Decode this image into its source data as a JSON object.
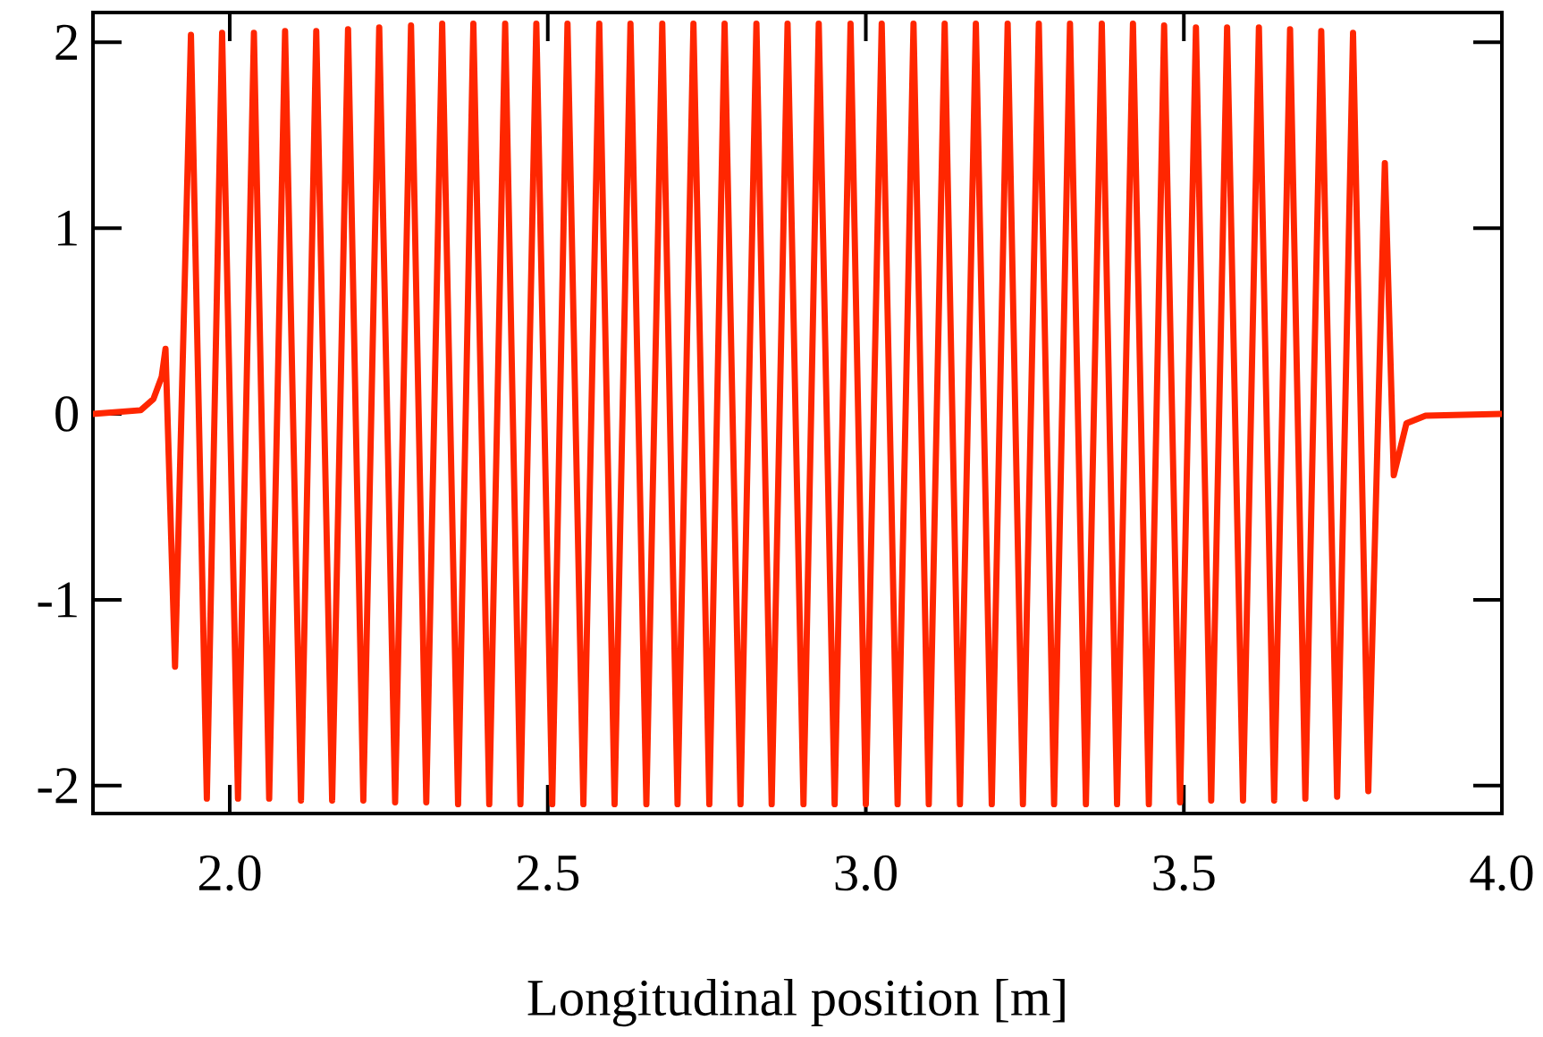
{
  "chart_data": {
    "type": "line",
    "xlabel": "Longitudinal position [m]",
    "xlim": [
      1.785,
      4.0
    ],
    "ylim": [
      -2.15,
      2.16
    ],
    "xticks": [
      {
        "value": 2,
        "label": "2.0"
      },
      {
        "value": 2.5,
        "label": "2.5"
      },
      {
        "value": 3,
        "label": "3.0"
      },
      {
        "value": 3.5,
        "label": "3.5"
      },
      {
        "value": 4,
        "label": "4.0"
      }
    ],
    "yticks": [
      -2,
      -1,
      0,
      1,
      2
    ],
    "marker": "none",
    "line_style": "solid",
    "series": [
      {
        "color": "#ff2600",
        "x": [
          1.785,
          1.86,
          1.88,
          1.893,
          1.899,
          1.914,
          1.939,
          1.964,
          1.988,
          2.013,
          2.038,
          2.062,
          2.087,
          2.112,
          2.136,
          2.161,
          2.186,
          2.21,
          2.235,
          2.26,
          2.285,
          2.309,
          2.334,
          2.359,
          2.383,
          2.408,
          2.433,
          2.457,
          2.482,
          2.507,
          2.531,
          2.556,
          2.581,
          2.605,
          2.63,
          2.655,
          2.68,
          2.704,
          2.729,
          2.754,
          2.778,
          2.803,
          2.828,
          2.852,
          2.877,
          2.902,
          2.926,
          2.951,
          2.976,
          3.0,
          3.025,
          3.05,
          3.075,
          3.099,
          3.124,
          3.148,
          3.173,
          3.198,
          3.223,
          3.247,
          3.272,
          3.296,
          3.321,
          3.346,
          3.371,
          3.395,
          3.42,
          3.445,
          3.469,
          3.494,
          3.519,
          3.543,
          3.568,
          3.593,
          3.618,
          3.642,
          3.667,
          3.691,
          3.716,
          3.741,
          3.766,
          3.79,
          3.816,
          3.83,
          3.85,
          3.88,
          4.0
        ],
        "values": [
          0,
          0.02,
          0.08,
          0.2,
          0.35,
          -1.36,
          2.04,
          -2.07,
          2.05,
          -2.07,
          2.05,
          -2.07,
          2.06,
          -2.08,
          2.06,
          -2.08,
          2.07,
          -2.08,
          2.08,
          -2.09,
          2.09,
          -2.09,
          2.1,
          -2.1,
          2.1,
          -2.1,
          2.1,
          -2.1,
          2.1,
          -2.1,
          2.1,
          -2.1,
          2.1,
          -2.1,
          2.1,
          -2.1,
          2.1,
          -2.1,
          2.1,
          -2.1,
          2.1,
          -2.1,
          2.1,
          -2.1,
          2.1,
          -2.1,
          2.1,
          -2.1,
          2.1,
          -2.1,
          2.1,
          -2.1,
          2.1,
          -2.1,
          2.1,
          -2.1,
          2.1,
          -2.1,
          2.1,
          -2.1,
          2.1,
          -2.1,
          2.1,
          -2.1,
          2.1,
          -2.1,
          2.1,
          -2.1,
          2.09,
          -2.09,
          2.08,
          -2.08,
          2.08,
          -2.08,
          2.08,
          -2.08,
          2.07,
          -2.07,
          2.06,
          -2.06,
          2.05,
          -2.03,
          1.35,
          -0.33,
          -0.05,
          -0.01,
          0
        ]
      }
    ]
  }
}
